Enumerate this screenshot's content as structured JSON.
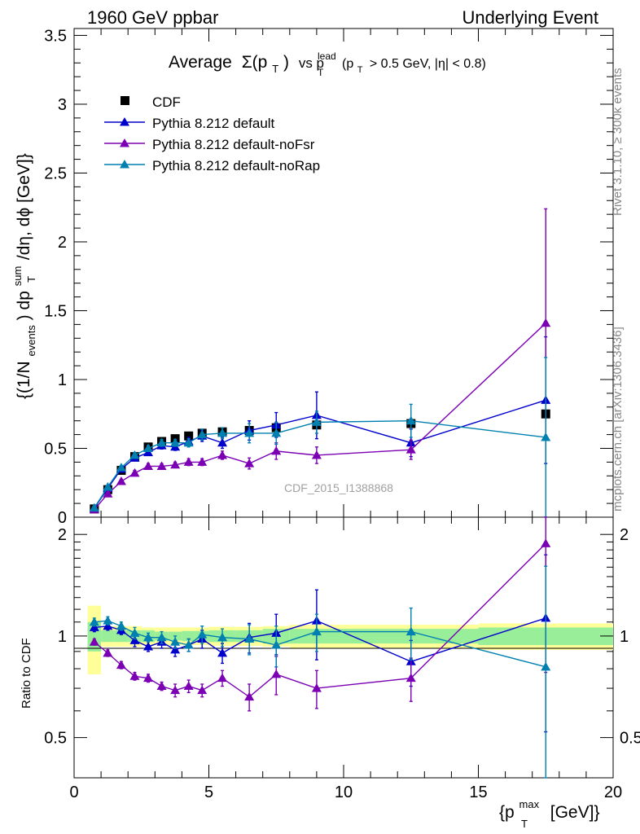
{
  "header": {
    "left": "1960 GeV ppbar",
    "right": "Underlying Event"
  },
  "title": {
    "average": "Average",
    "sigma": "Σ(p",
    "sigma_sub": "T",
    "sigma_close": ")",
    "vs": "vs p",
    "lead_sup": "lead",
    "lead_sub": "T",
    "cond": "(p",
    "cond_sub": "T",
    "cond_rest": "> 0.5 GeV, |η| < 0.8)"
  },
  "side_labels": {
    "rivet": "Rivet 3.1.10, ≥ 300k events",
    "mcplots": "mcplots.cern.ch [arXiv:1306.3436]"
  },
  "watermark": "CDF_2015_I1388868",
  "ylabel_top": {
    "p1": "{(1/N",
    "sub1": "events",
    "p2": ") dp",
    "sup2": "sum",
    "sub2": "T",
    "p3": "/dη, dϕ [GeV]}"
  },
  "ylabel_bottom": "Ratio to CDF",
  "xlabel": {
    "p1": "{p",
    "sup": "max",
    "sub": "T",
    "p2": "[GeV]}"
  },
  "legend": [
    {
      "label": "CDF",
      "color": "#000000",
      "marker": "square"
    },
    {
      "label": "Pythia 8.212 default",
      "color": "#0000cc",
      "marker": "triangle"
    },
    {
      "label": "Pythia 8.212 default-noFsr",
      "color": "#7b00b4",
      "marker": "triangle"
    },
    {
      "label": "Pythia 8.212 default-noRap",
      "color": "#0080b0",
      "marker": "triangle"
    }
  ],
  "chart_data": [
    {
      "type": "line",
      "panel": "main",
      "xlim": [
        0,
        20
      ],
      "ylim": [
        0,
        3.55
      ],
      "yticks": [
        "0",
        "0.5",
        "1",
        "1.5",
        "2",
        "2.5",
        "3",
        "3.5"
      ],
      "x": [
        0.75,
        1.25,
        1.75,
        2.25,
        2.75,
        3.25,
        3.75,
        4.25,
        4.75,
        5.5,
        6.5,
        7.5,
        9.0,
        12.5,
        17.5
      ],
      "series": [
        {
          "name": "CDF",
          "values": [
            0.06,
            0.2,
            0.34,
            0.44,
            0.51,
            0.55,
            0.57,
            0.59,
            0.61,
            0.62,
            0.63,
            0.65,
            0.67,
            0.68,
            0.75
          ],
          "err": [
            0.01,
            0.01,
            0.01,
            0.01,
            0.01,
            0.01,
            0.01,
            0.01,
            0.01,
            0.01,
            0.01,
            0.01,
            0.02,
            0.02,
            0.04
          ]
        },
        {
          "name": "Pythia 8.212 default",
          "values": [
            0.065,
            0.21,
            0.35,
            0.43,
            0.47,
            0.52,
            0.51,
            0.55,
            0.59,
            0.54,
            0.63,
            0.67,
            0.74,
            0.54,
            0.85
          ],
          "err": [
            0.005,
            0.01,
            0.015,
            0.02,
            0.02,
            0.025,
            0.025,
            0.03,
            0.04,
            0.04,
            0.07,
            0.09,
            0.17,
            0.1,
            0.46
          ]
        },
        {
          "name": "Pythia 8.212 default-noFsr",
          "values": [
            0.055,
            0.17,
            0.26,
            0.32,
            0.37,
            0.37,
            0.38,
            0.4,
            0.4,
            0.45,
            0.39,
            0.48,
            0.45,
            0.49,
            1.41
          ],
          "err": [
            0.005,
            0.01,
            0.015,
            0.02,
            0.02,
            0.02,
            0.02,
            0.025,
            0.025,
            0.03,
            0.04,
            0.06,
            0.06,
            0.07,
            0.83
          ]
        },
        {
          "name": "Pythia 8.212 default-noRap",
          "values": [
            0.067,
            0.22,
            0.36,
            0.45,
            0.5,
            0.54,
            0.54,
            0.54,
            0.6,
            0.61,
            0.61,
            0.61,
            0.69,
            0.7,
            0.58
          ],
          "err": [
            0.005,
            0.01,
            0.015,
            0.02,
            0.02,
            0.025,
            0.025,
            0.03,
            0.04,
            0.04,
            0.07,
            0.08,
            0.08,
            0.12,
            0.58
          ]
        }
      ]
    },
    {
      "type": "line",
      "panel": "ratio",
      "xlim": [
        0,
        20
      ],
      "ylim": [
        0.38,
        2.25
      ],
      "yticks": [
        "0.5",
        "1",
        "2"
      ],
      "xticks": [
        "0",
        "5",
        "10",
        "15",
        "20"
      ],
      "x": [
        0.75,
        1.25,
        1.75,
        2.25,
        2.75,
        3.25,
        3.75,
        4.25,
        4.75,
        5.5,
        6.5,
        7.5,
        9.0,
        12.5,
        17.5
      ],
      "band_edges": [
        0.5,
        1.0,
        1.5,
        2.0,
        2.5,
        3.0,
        3.5,
        4.0,
        4.5,
        5.0,
        6.0,
        7.0,
        8.0,
        10.0,
        15.0,
        20.0
      ],
      "band_inner": [
        0.1,
        0.04,
        0.04,
        0.04,
        0.04,
        0.03,
        0.03,
        0.035,
        0.035,
        0.04,
        0.04,
        0.05,
        0.05,
        0.05,
        0.06
      ],
      "band_outer": [
        0.23,
        0.07,
        0.07,
        0.07,
        0.06,
        0.06,
        0.06,
        0.06,
        0.06,
        0.065,
        0.065,
        0.07,
        0.08,
        0.08,
        0.09
      ],
      "series": [
        {
          "name": "Pythia 8.212 default",
          "values": [
            1.06,
            1.07,
            1.04,
            0.97,
            0.93,
            0.96,
            0.91,
            0.94,
            0.98,
            0.89,
            0.99,
            1.02,
            1.11,
            0.84,
            1.13
          ],
          "err": [
            0.03,
            0.03,
            0.03,
            0.04,
            0.03,
            0.04,
            0.04,
            0.04,
            0.06,
            0.06,
            0.1,
            0.14,
            0.26,
            0.13,
            0.61
          ]
        },
        {
          "name": "Pythia 8.212 default-noFsr",
          "values": [
            0.96,
            0.89,
            0.82,
            0.76,
            0.75,
            0.71,
            0.69,
            0.71,
            0.69,
            0.75,
            0.66,
            0.77,
            0.7,
            0.75,
            1.88
          ],
          "err": [
            0.02,
            0.02,
            0.02,
            0.02,
            0.02,
            0.02,
            0.03,
            0.03,
            0.03,
            0.04,
            0.06,
            0.1,
            0.09,
            0.11,
            1.1
          ]
        },
        {
          "name": "Pythia 8.212 default-noRap",
          "values": [
            1.1,
            1.11,
            1.07,
            1.02,
            0.99,
            0.99,
            0.96,
            0.94,
            1.01,
            0.99,
            0.98,
            0.94,
            1.03,
            1.03,
            0.81
          ],
          "err": [
            0.03,
            0.03,
            0.03,
            0.04,
            0.03,
            0.04,
            0.04,
            0.04,
            0.06,
            0.06,
            0.1,
            0.13,
            0.13,
            0.18,
            0.8
          ]
        }
      ]
    }
  ]
}
